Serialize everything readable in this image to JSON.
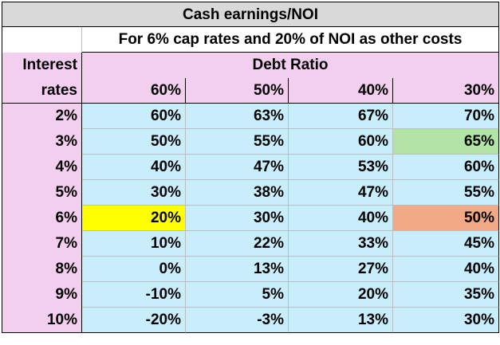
{
  "table": {
    "title": "Cash earnings/NOI",
    "subtitle": "For 6% cap rates and 20% of NOI as other costs",
    "row_header_line1": "Interest",
    "row_header_line2": "rates",
    "column_group_header": "Debt Ratio",
    "columns": [
      "60%",
      "50%",
      "40%",
      "30%"
    ],
    "rows": [
      {
        "rate": "2%",
        "values": [
          "60%",
          "63%",
          "67%",
          "70%"
        ]
      },
      {
        "rate": "3%",
        "values": [
          "50%",
          "55%",
          "60%",
          "65%"
        ]
      },
      {
        "rate": "4%",
        "values": [
          "40%",
          "47%",
          "53%",
          "60%"
        ]
      },
      {
        "rate": "5%",
        "values": [
          "30%",
          "38%",
          "47%",
          "55%"
        ]
      },
      {
        "rate": "6%",
        "values": [
          "20%",
          "30%",
          "40%",
          "50%"
        ]
      },
      {
        "rate": "7%",
        "values": [
          "10%",
          "22%",
          "33%",
          "45%"
        ]
      },
      {
        "rate": "8%",
        "values": [
          "0%",
          "13%",
          "27%",
          "40%"
        ]
      },
      {
        "rate": "9%",
        "values": [
          "-10%",
          "5%",
          "20%",
          "35%"
        ]
      },
      {
        "rate": "10%",
        "values": [
          "-20%",
          "-3%",
          "13%",
          "30%"
        ]
      }
    ],
    "highlights": {
      "yellow": "#ffff00",
      "green": "#b2e5a5",
      "orange": "#f2aa86",
      "pink": "#f2cfee",
      "blue": "#c9eefb"
    }
  }
}
